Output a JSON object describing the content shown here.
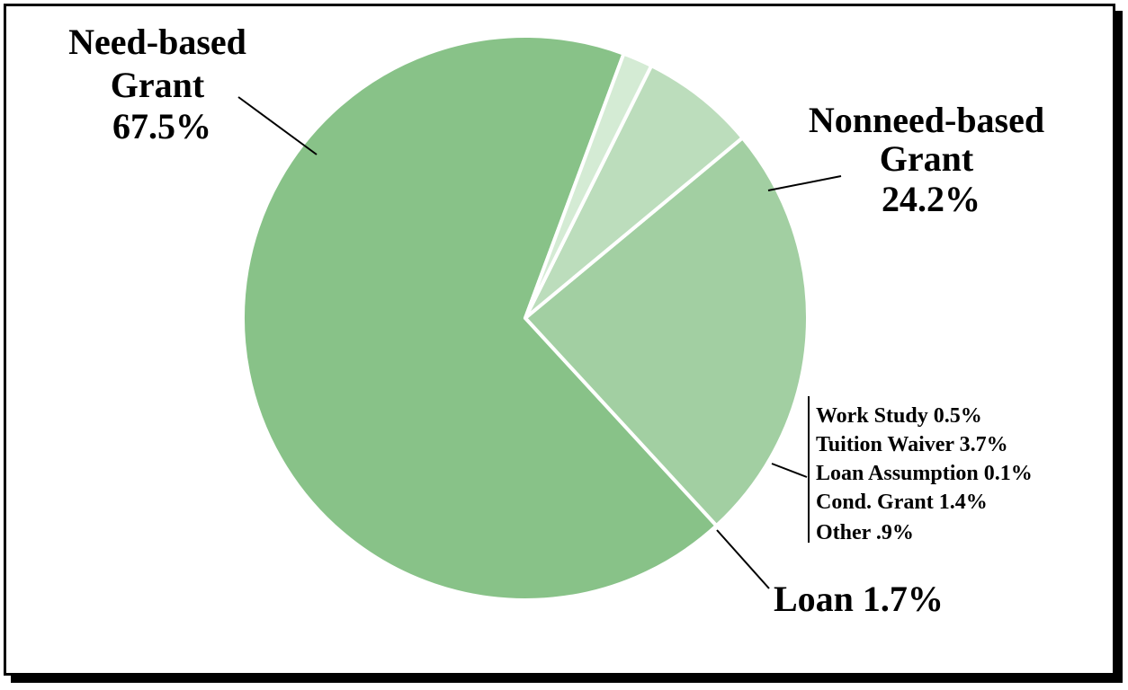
{
  "colors": {
    "need": "#88c288",
    "nonneed": "#a2cfa2",
    "other_group": "#bcddbc",
    "loan": "#d4ebd4",
    "separator": "#ffffff",
    "border": "#000000"
  },
  "chart_data": {
    "type": "pie",
    "slices": [
      {
        "name": "Need-based Grant",
        "value": 67.5
      },
      {
        "name": "Nonneed-based Grant",
        "value": 24.2
      },
      {
        "name": "Work Study / Tuition Waiver / Loan Assumption / Cond. Grant / Other",
        "value": 6.6
      },
      {
        "name": "Loan",
        "value": 1.7
      }
    ],
    "labels": {
      "need": {
        "line1": "Need-based",
        "line2": "Grant",
        "line3": "67.5%"
      },
      "nonneed": {
        "line1": "Nonneed-based",
        "line2": "Grant",
        "line3": "24.2%"
      },
      "loan": "Loan 1.7%",
      "group": [
        "Work Study 0.5%",
        "Tuition Waiver 3.7%",
        "Loan Assumption 0.1%",
        "Cond. Grant 1.4%",
        "Other .9%"
      ]
    }
  }
}
